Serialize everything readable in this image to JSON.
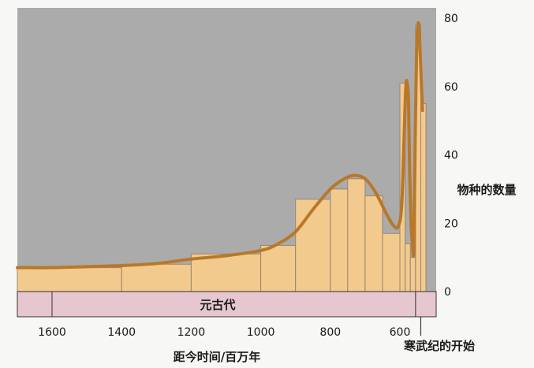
{
  "chart_data": {
    "type": "bar",
    "title": "",
    "xlabel": "距今时间/百万年",
    "ylabel": "物种的数量",
    "xlim": [
      1700,
      500
    ],
    "ylim": [
      0,
      80
    ],
    "x_ticks": [
      1600,
      1400,
      1200,
      1000,
      800,
      600
    ],
    "y_ticks": [
      0,
      20,
      40,
      60,
      80
    ],
    "bars": [
      {
        "x0": 1700,
        "x1": 1400,
        "value": 7
      },
      {
        "x0": 1400,
        "x1": 1200,
        "value": 8
      },
      {
        "x0": 1200,
        "x1": 1000,
        "value": 11
      },
      {
        "x0": 1000,
        "x1": 900,
        "value": 13.5
      },
      {
        "x0": 900,
        "x1": 800,
        "value": 27
      },
      {
        "x0": 800,
        "x1": 750,
        "value": 30
      },
      {
        "x0": 750,
        "x1": 700,
        "value": 33
      },
      {
        "x0": 700,
        "x1": 650,
        "value": 28
      },
      {
        "x0": 650,
        "x1": 600,
        "value": 17
      },
      {
        "x0": 600,
        "x1": 585,
        "value": 61
      },
      {
        "x0": 585,
        "x1": 570,
        "value": 14
      },
      {
        "x0": 570,
        "x1": 555,
        "value": 10
      },
      {
        "x0": 555,
        "x1": 540,
        "value": 78
      },
      {
        "x0": 540,
        "x1": 525,
        "value": 55
      }
    ],
    "trend_curve": [
      [
        1700,
        7
      ],
      [
        1600,
        7
      ],
      [
        1500,
        7.3
      ],
      [
        1400,
        7.6
      ],
      [
        1300,
        8.2
      ],
      [
        1200,
        9.5
      ],
      [
        1100,
        10.5
      ],
      [
        1000,
        12
      ],
      [
        950,
        14
      ],
      [
        900,
        17.5
      ],
      [
        850,
        24
      ],
      [
        800,
        30
      ],
      [
        760,
        33
      ],
      [
        730,
        34
      ],
      [
        700,
        33
      ],
      [
        670,
        29
      ],
      [
        640,
        23
      ],
      [
        620,
        19.5
      ],
      [
        605,
        19
      ],
      [
        595,
        25
      ],
      [
        588,
        45
      ],
      [
        583,
        60
      ],
      [
        579,
        61
      ],
      [
        575,
        55
      ],
      [
        572,
        35
      ],
      [
        568,
        20
      ],
      [
        564,
        14
      ],
      [
        560,
        12.5
      ],
      [
        556,
        45
      ],
      [
        552,
        70
      ],
      [
        548,
        78
      ],
      [
        545,
        77
      ],
      [
        541,
        68
      ],
      [
        538,
        60
      ],
      [
        535,
        53
      ]
    ],
    "era_band": {
      "label": "元古代",
      "x0": 1700,
      "x1": 555
    },
    "annotation": {
      "text": "寒武纪的开始",
      "x": 540
    }
  },
  "colors": {
    "background": "#ababab",
    "bar_fill": "#f3ca8e",
    "bar_stroke": "#9a8570",
    "curve": "#b8782a",
    "era_band": "#e6c6cf",
    "axis": "#333333"
  }
}
